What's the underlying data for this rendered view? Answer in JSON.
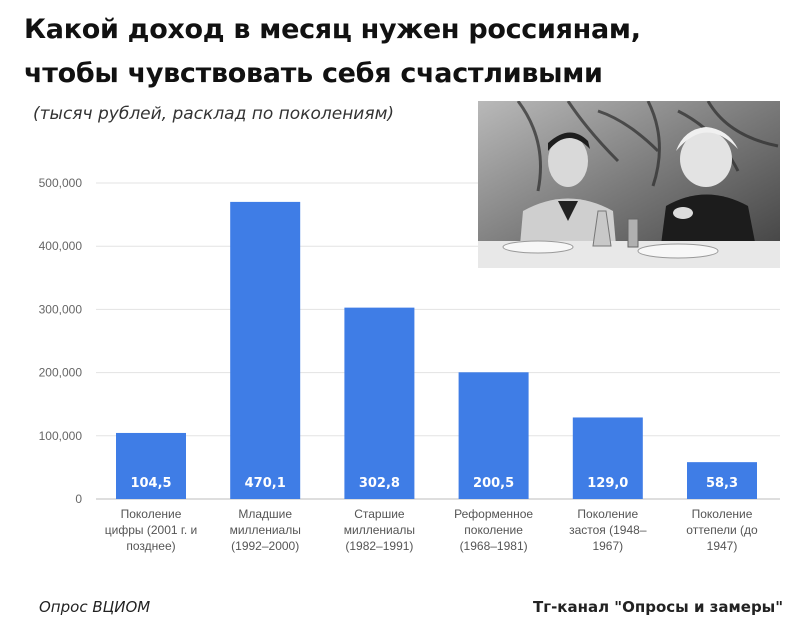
{
  "title_line1": "Какой доход в месяц нужен россиянам,",
  "title_line2": "чтобы чувствовать себя счастливыми",
  "subtitle": "(тысяч рублей, расклад по поколениям)",
  "footer_left": "Опрос ВЦИОМ",
  "footer_right": "Тг-канал \"Опросы и замеры\"",
  "chart_data": {
    "type": "bar",
    "title": "",
    "xlabel": "",
    "ylabel": "",
    "ylim": [
      0,
      500000
    ],
    "yticks": [
      0,
      100000,
      200000,
      300000,
      400000,
      500000
    ],
    "ytick_labels": [
      "0",
      "100,000",
      "200,000",
      "300,000",
      "400,000",
      "500,000"
    ],
    "grid": true,
    "bar_color": "#3f7de6",
    "categories": [
      [
        "Поколение",
        "цифры (2001 г. и",
        "позднее)"
      ],
      [
        "Младшие",
        "миллениалы",
        "(1992–2000)"
      ],
      [
        "Старшие",
        "миллениалы",
        "(1982–1991)"
      ],
      [
        "Реформенное",
        "поколение",
        "(1968–1981)"
      ],
      [
        "Поколение",
        "застоя (1948–",
        "1967)"
      ],
      [
        "Поколение",
        "оттепели (до",
        "1947)"
      ]
    ],
    "values": [
      104500,
      470100,
      302800,
      200500,
      129000,
      58300
    ],
    "data_labels": [
      "104,5",
      "470,1",
      "302,8",
      "200,5",
      "129,0",
      "58,3"
    ]
  }
}
